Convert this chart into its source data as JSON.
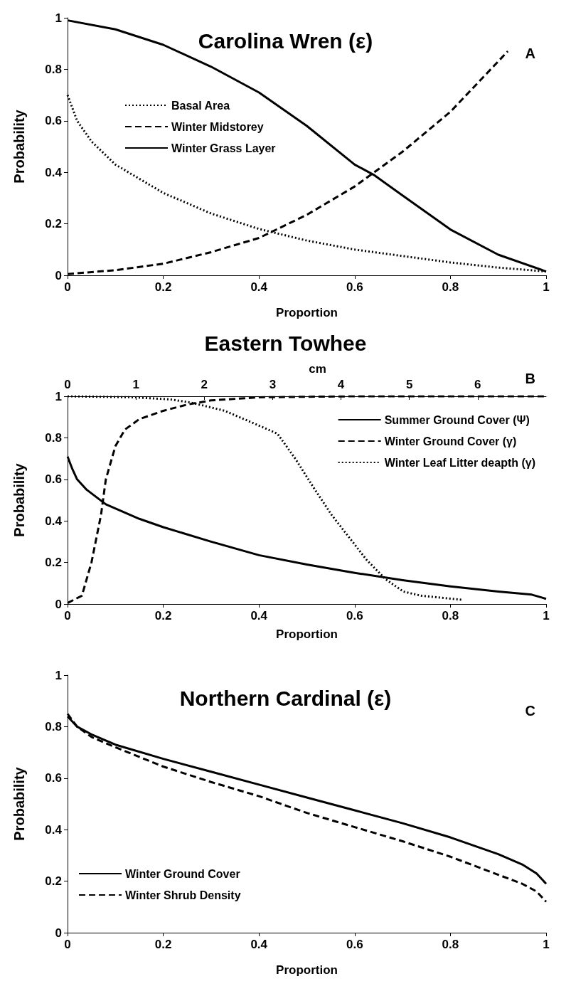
{
  "chart_data": [
    {
      "type": "line",
      "title": "Carolina Wren (ε)",
      "xlabel": "Proportion",
      "ylabel": "Probability",
      "annotations": [
        "A"
      ],
      "xlim": [
        0,
        1
      ],
      "xticks": [
        0,
        0.2,
        0.4,
        0.6,
        0.8,
        1
      ],
      "ylim": [
        0,
        1
      ],
      "yticks": [
        0,
        0.2,
        0.4,
        0.6,
        0.8,
        1
      ],
      "grid": false,
      "legend": "top left",
      "marker": "none",
      "series": [
        {
          "name": "Basal Area",
          "color": "#000000",
          "line_style": "dotted",
          "x": [
            0,
            0.02,
            0.05,
            0.1,
            0.2,
            0.3,
            0.4,
            0.5,
            0.6,
            0.7,
            0.8,
            0.9,
            1
          ],
          "values": [
            0.7,
            0.6,
            0.52,
            0.43,
            0.32,
            0.24,
            0.18,
            0.135,
            0.1,
            0.075,
            0.05,
            0.03,
            0.015
          ]
        },
        {
          "name": "Winter Midstorey",
          "color": "#000000",
          "line_style": "dashed",
          "x": [
            0,
            0.1,
            0.2,
            0.3,
            0.4,
            0.5,
            0.6,
            0.7,
            0.8,
            0.92
          ],
          "values": [
            0.005,
            0.02,
            0.045,
            0.09,
            0.145,
            0.235,
            0.345,
            0.48,
            0.635,
            0.87
          ]
        },
        {
          "name": "Winter Grass Layer",
          "color": "#000000",
          "line_style": "solid",
          "x": [
            0,
            0.1,
            0.2,
            0.3,
            0.4,
            0.5,
            0.6,
            0.64,
            0.7,
            0.8,
            0.9,
            1
          ],
          "values": [
            0.99,
            0.955,
            0.895,
            0.81,
            0.71,
            0.58,
            0.43,
            0.39,
            0.31,
            0.178,
            0.08,
            0.015
          ]
        }
      ]
    },
    {
      "type": "line",
      "title": "Eastern Towhee",
      "xlabel": "Proportion",
      "ylabel": "Probability",
      "x2label": "cm",
      "annotations": [
        "B"
      ],
      "xlim": [
        0,
        1
      ],
      "xticks": [
        0,
        0.2,
        0.4,
        0.6,
        0.8,
        1
      ],
      "x2lim": [
        0,
        7
      ],
      "x2ticks": [
        0,
        1,
        2,
        3,
        4,
        5,
        6
      ],
      "ylim": [
        0,
        1
      ],
      "yticks": [
        0,
        0.2,
        0.4,
        0.6,
        0.8,
        1
      ],
      "grid": false,
      "legend": "top right",
      "marker": "none",
      "series": [
        {
          "name": "Summer Ground Cover (Ψ)",
          "color": "#000000",
          "line_style": "solid",
          "x": [
            0,
            0.01,
            0.02,
            0.04,
            0.08,
            0.15,
            0.2,
            0.3,
            0.4,
            0.5,
            0.6,
            0.7,
            0.8,
            0.9,
            0.97,
            1
          ],
          "values": [
            0.71,
            0.65,
            0.6,
            0.55,
            0.48,
            0.41,
            0.37,
            0.3,
            0.235,
            0.19,
            0.15,
            0.115,
            0.085,
            0.06,
            0.045,
            0.025
          ]
        },
        {
          "name": "Winter Ground Cover (γ)",
          "color": "#000000",
          "line_style": "dashed",
          "x": [
            0,
            0.03,
            0.05,
            0.07,
            0.08,
            0.1,
            0.12,
            0.15,
            0.2,
            0.25,
            0.3,
            0.4,
            0.6,
            1
          ],
          "values": [
            0.005,
            0.04,
            0.2,
            0.43,
            0.6,
            0.76,
            0.84,
            0.89,
            0.93,
            0.96,
            0.98,
            0.995,
            1,
            1
          ]
        },
        {
          "name": "Winter Leaf Litter deapth (γ)",
          "color": "#000000",
          "line_style": "dotted",
          "axis": "x2",
          "x": [
            0,
            0.97,
            1.5,
            1.8,
            2.3,
            2.65,
            3.07,
            3.33,
            3.6,
            3.86,
            4.12,
            4.38,
            4.65,
            4.91,
            5.17,
            5.77
          ],
          "values": [
            1,
            0.995,
            0.985,
            0.97,
            0.93,
            0.88,
            0.82,
            0.7,
            0.56,
            0.43,
            0.32,
            0.21,
            0.12,
            0.06,
            0.04,
            0.02
          ]
        }
      ]
    },
    {
      "type": "line",
      "title": "Northern Cardinal (ε)",
      "xlabel": "Proportion",
      "ylabel": "Probability",
      "annotations": [
        "C"
      ],
      "xlim": [
        0,
        1
      ],
      "xticks": [
        0,
        0.2,
        0.4,
        0.6,
        0.8,
        1
      ],
      "ylim": [
        0,
        1
      ],
      "yticks": [
        0,
        0.2,
        0.4,
        0.6,
        0.8,
        1
      ],
      "grid": false,
      "legend": "bottom left",
      "marker": "none",
      "series": [
        {
          "name": "Winter Ground Cover",
          "color": "#000000",
          "line_style": "solid",
          "x": [
            0,
            0.02,
            0.05,
            0.1,
            0.2,
            0.3,
            0.4,
            0.5,
            0.6,
            0.7,
            0.8,
            0.9,
            0.95,
            0.98,
            1
          ],
          "values": [
            0.84,
            0.8,
            0.77,
            0.73,
            0.675,
            0.625,
            0.575,
            0.525,
            0.475,
            0.425,
            0.37,
            0.305,
            0.265,
            0.23,
            0.19
          ]
        },
        {
          "name": "Winter Shrub Density",
          "color": "#000000",
          "line_style": "dashed",
          "x": [
            0,
            0.02,
            0.05,
            0.1,
            0.2,
            0.3,
            0.4,
            0.5,
            0.6,
            0.7,
            0.8,
            0.9,
            0.95,
            0.98,
            1
          ],
          "values": [
            0.85,
            0.8,
            0.76,
            0.72,
            0.645,
            0.585,
            0.53,
            0.465,
            0.41,
            0.355,
            0.295,
            0.225,
            0.19,
            0.16,
            0.12
          ]
        }
      ]
    }
  ]
}
